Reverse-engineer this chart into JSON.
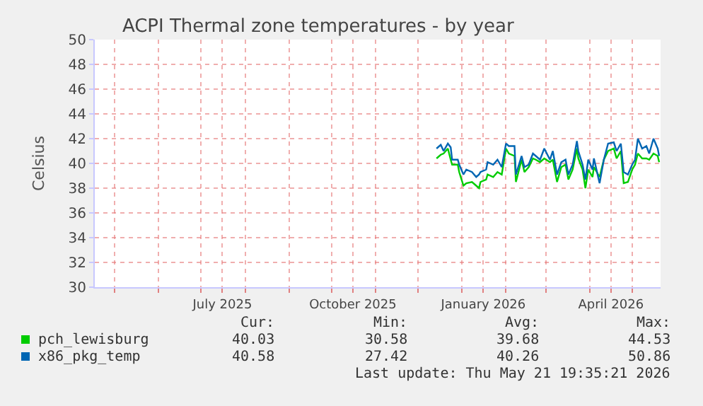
{
  "chart_data": {
    "type": "line",
    "title": "ACPI Thermal zone temperatures - by year",
    "ylabel": "Celsius",
    "x": [
      "2025-12-14",
      "2025-12-17",
      "2025-12-19",
      "2025-12-22",
      "2025-12-24",
      "2025-12-25",
      "2025-12-29",
      "2025-12-30",
      "2026-01-02",
      "2026-01-04",
      "2026-01-08",
      "2026-01-11",
      "2026-01-13",
      "2026-01-14",
      "2026-01-18",
      "2026-01-19",
      "2026-01-23",
      "2026-01-26",
      "2026-01-29",
      "2026-02-01",
      "2026-02-03",
      "2026-02-07",
      "2026-02-08",
      "2026-02-12",
      "2026-02-14",
      "2026-02-17",
      "2026-02-20",
      "2026-02-22",
      "2026-02-25",
      "2026-02-28",
      "2026-03-04",
      "2026-03-06",
      "2026-03-09",
      "2026-03-12",
      "2026-03-15",
      "2026-03-17",
      "2026-03-20",
      "2026-03-23",
      "2026-03-24",
      "2026-03-27",
      "2026-03-29",
      "2026-03-31",
      "2026-04-03",
      "2026-04-04",
      "2026-04-08",
      "2026-04-11",
      "2026-04-14",
      "2026-04-18",
      "2026-04-20",
      "2026-04-23",
      "2026-04-25",
      "2026-04-28",
      "2026-05-01",
      "2026-05-03",
      "2026-05-05",
      "2026-05-08",
      "2026-05-11",
      "2026-05-13",
      "2026-05-16",
      "2026-05-19",
      "2026-05-20"
    ],
    "series": [
      {
        "name": "pch_lewisburg",
        "color": "#00cc00",
        "values": [
          40.4,
          40.7,
          40.8,
          41.2,
          40.3,
          39.9,
          39.9,
          39.3,
          38.2,
          38.4,
          38.5,
          38.2,
          38.0,
          38.5,
          38.7,
          39.1,
          38.9,
          39.3,
          39.1,
          41.2,
          40.8,
          40.6,
          38.5,
          40.3,
          39.3,
          39.7,
          40.4,
          40.3,
          40.1,
          40.4,
          40.1,
          40.3,
          38.5,
          39.7,
          39.9,
          38.7,
          39.5,
          41.2,
          40.4,
          39.5,
          38.0,
          39.5,
          38.9,
          39.7,
          38.9,
          40.3,
          41.0,
          41.2,
          40.4,
          41.0,
          38.4,
          38.5,
          39.5,
          39.9,
          40.8,
          40.4,
          40.4,
          40.3,
          40.8,
          40.6,
          40.1
        ]
      },
      {
        "name": "x86_pkg_temp",
        "color": "#0066b3",
        "values": [
          41.2,
          41.5,
          41.0,
          41.6,
          41.3,
          40.3,
          40.3,
          39.9,
          39.1,
          39.5,
          39.3,
          38.9,
          39.1,
          39.3,
          39.5,
          40.1,
          39.9,
          40.3,
          39.7,
          41.6,
          41.4,
          41.4,
          39.1,
          40.6,
          39.7,
          39.9,
          40.8,
          40.6,
          40.3,
          41.2,
          40.3,
          41.0,
          39.1,
          40.1,
          40.3,
          39.1,
          39.9,
          41.8,
          41.0,
          39.9,
          38.7,
          40.3,
          39.5,
          40.4,
          38.4,
          40.3,
          41.6,
          41.7,
          41.0,
          41.6,
          39.3,
          39.1,
          39.9,
          40.3,
          42.0,
          41.2,
          41.4,
          40.8,
          42.0,
          41.2,
          40.6
        ]
      }
    ],
    "xlim": [
      "2025-04-17",
      "2026-05-21"
    ],
    "xticks": [
      {
        "value": "2025-05-01",
        "label": null
      },
      {
        "value": "2025-06-01",
        "label": null
      },
      {
        "value": "2025-07-01",
        "label": null
      },
      {
        "value": "2025-07-16",
        "label": "July 2025"
      },
      {
        "value": "2025-08-01",
        "label": null
      },
      {
        "value": "2025-09-01",
        "label": null
      },
      {
        "value": "2025-10-01",
        "label": null
      },
      {
        "value": "2025-10-16",
        "label": "October 2025"
      },
      {
        "value": "2025-11-01",
        "label": null
      },
      {
        "value": "2025-12-01",
        "label": null
      },
      {
        "value": "2026-01-01",
        "label": null
      },
      {
        "value": "2026-01-16",
        "label": "January 2026"
      },
      {
        "value": "2026-02-01",
        "label": null
      },
      {
        "value": "2026-03-01",
        "label": null
      },
      {
        "value": "2026-04-01",
        "label": null
      },
      {
        "value": "2026-04-16",
        "label": "April 2026"
      },
      {
        "value": "2026-05-01",
        "label": null
      }
    ],
    "ylim": [
      30,
      50
    ],
    "yticks": [
      30,
      32,
      34,
      36,
      38,
      40,
      42,
      44,
      46,
      48,
      50
    ],
    "grid": true,
    "legend": "bottom",
    "annotations": [
      "Cur:",
      "Min:",
      "Avg:",
      "Max:",
      "40.03",
      "30.58",
      "39.68",
      "44.53",
      "40.58",
      "27.42",
      "40.26",
      "50.86",
      "Last update: Thu May 21 19:35:21 2026"
    ]
  }
}
